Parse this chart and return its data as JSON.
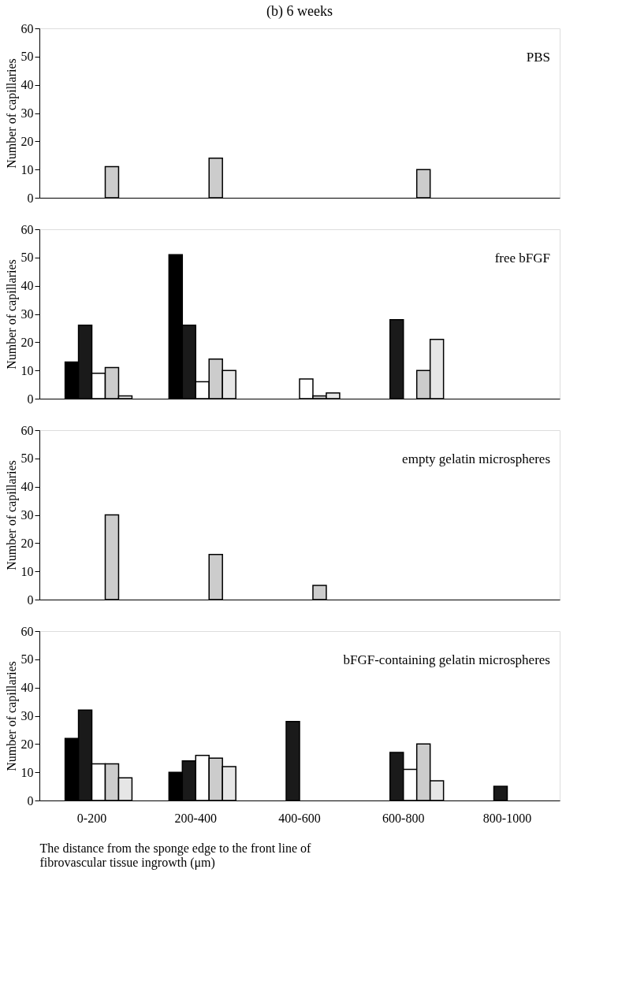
{
  "chart_data": [
    {
      "type": "bar",
      "title": "(b)      6 weeks",
      "ylabel": "Number of capillaries",
      "annotations": [
        "PBS"
      ],
      "categories": [
        null,
        null,
        null,
        null,
        null
      ],
      "tick_labels": "y",
      "ylim": [
        0,
        60
      ],
      "yticks": [
        0,
        10,
        20,
        30,
        40,
        50,
        60
      ],
      "grid": false,
      "legend": false,
      "series": [
        {
          "color": "#000000",
          "values": [
            0,
            0,
            0,
            0,
            0
          ]
        },
        {
          "color": "#000000",
          "values": [
            0,
            0,
            0,
            0,
            0
          ]
        },
        {
          "color": "#1a1a1a",
          "values": [
            0,
            0,
            0,
            0,
            0
          ]
        },
        {
          "color": "#ffffff",
          "values": [
            0,
            0,
            0,
            0,
            0
          ]
        },
        {
          "color": "#cccccc",
          "values": [
            11,
            14,
            0,
            10,
            0
          ]
        },
        {
          "color": "#e6e6e6",
          "values": [
            0,
            0,
            0,
            0,
            0
          ]
        }
      ]
    },
    {
      "type": "bar",
      "ylabel": "Number of capillaries",
      "annotations": [
        "free bFGF"
      ],
      "categories": [
        null,
        null,
        null,
        null,
        null
      ],
      "tick_labels": "y",
      "ylim": [
        0,
        60
      ],
      "yticks": [
        0,
        10,
        20,
        30,
        40,
        50,
        60
      ],
      "grid": false,
      "legend": false,
      "series": [
        {
          "color": "#000000",
          "values": [
            0,
            0,
            0,
            0,
            0
          ]
        },
        {
          "color": "#000000",
          "values": [
            13,
            51,
            0,
            0,
            0
          ]
        },
        {
          "color": "#1a1a1a",
          "values": [
            26,
            26,
            0,
            28,
            0
          ]
        },
        {
          "color": "#ffffff",
          "values": [
            9,
            6,
            7,
            0,
            0
          ]
        },
        {
          "color": "#cccccc",
          "values": [
            11,
            14,
            1,
            10,
            0
          ]
        },
        {
          "color": "#e6e6e6",
          "values": [
            1,
            10,
            2,
            21,
            0
          ]
        }
      ]
    },
    {
      "type": "bar",
      "ylabel": "Number of capillaries",
      "annotations": [
        "empty gelatin microspheres"
      ],
      "categories": [
        null,
        null,
        null,
        null,
        null
      ],
      "tick_labels": "y",
      "ylim": [
        0,
        60
      ],
      "yticks": [
        0,
        10,
        20,
        30,
        40,
        50,
        60
      ],
      "grid": false,
      "legend": false,
      "series": [
        {
          "color": "#000000",
          "values": [
            0,
            0,
            0,
            0,
            0
          ]
        },
        {
          "color": "#000000",
          "values": [
            0,
            0,
            0,
            0,
            0
          ]
        },
        {
          "color": "#1a1a1a",
          "values": [
            0,
            0,
            0,
            0,
            0
          ]
        },
        {
          "color": "#ffffff",
          "values": [
            0,
            0,
            0,
            0,
            0
          ]
        },
        {
          "color": "#cccccc",
          "values": [
            30,
            16,
            5,
            0,
            0
          ]
        },
        {
          "color": "#e6e6e6",
          "values": [
            0,
            0,
            0,
            0,
            0
          ]
        }
      ]
    },
    {
      "type": "bar",
      "ylabel": "Number of capillaries",
      "xlabel": "The distance from the sponge edge to the front line of fibrovascular tissue ingrowth (μm)",
      "annotations": [
        "bFGF-containing gelatin microspheres"
      ],
      "categories": [
        "0-200",
        "200-400",
        "400-600",
        "600-800",
        "800-1000"
      ],
      "ylim": [
        0,
        60
      ],
      "yticks": [
        0,
        10,
        20,
        30,
        40,
        50,
        60
      ],
      "grid": false,
      "legend": false,
      "series": [
        {
          "color": "#000000",
          "values": [
            0,
            0,
            0,
            0,
            0
          ]
        },
        {
          "color": "#000000",
          "values": [
            22,
            10,
            0,
            0,
            0
          ]
        },
        {
          "color": "#1a1a1a",
          "values": [
            32,
            14,
            28,
            17,
            5
          ]
        },
        {
          "color": "#ffffff",
          "values": [
            13,
            16,
            0,
            11,
            0
          ]
        },
        {
          "color": "#cccccc",
          "values": [
            13,
            15,
            0,
            20,
            0
          ]
        },
        {
          "color": "#e6e6e6",
          "values": [
            8,
            12,
            0,
            7,
            0
          ]
        }
      ]
    }
  ]
}
